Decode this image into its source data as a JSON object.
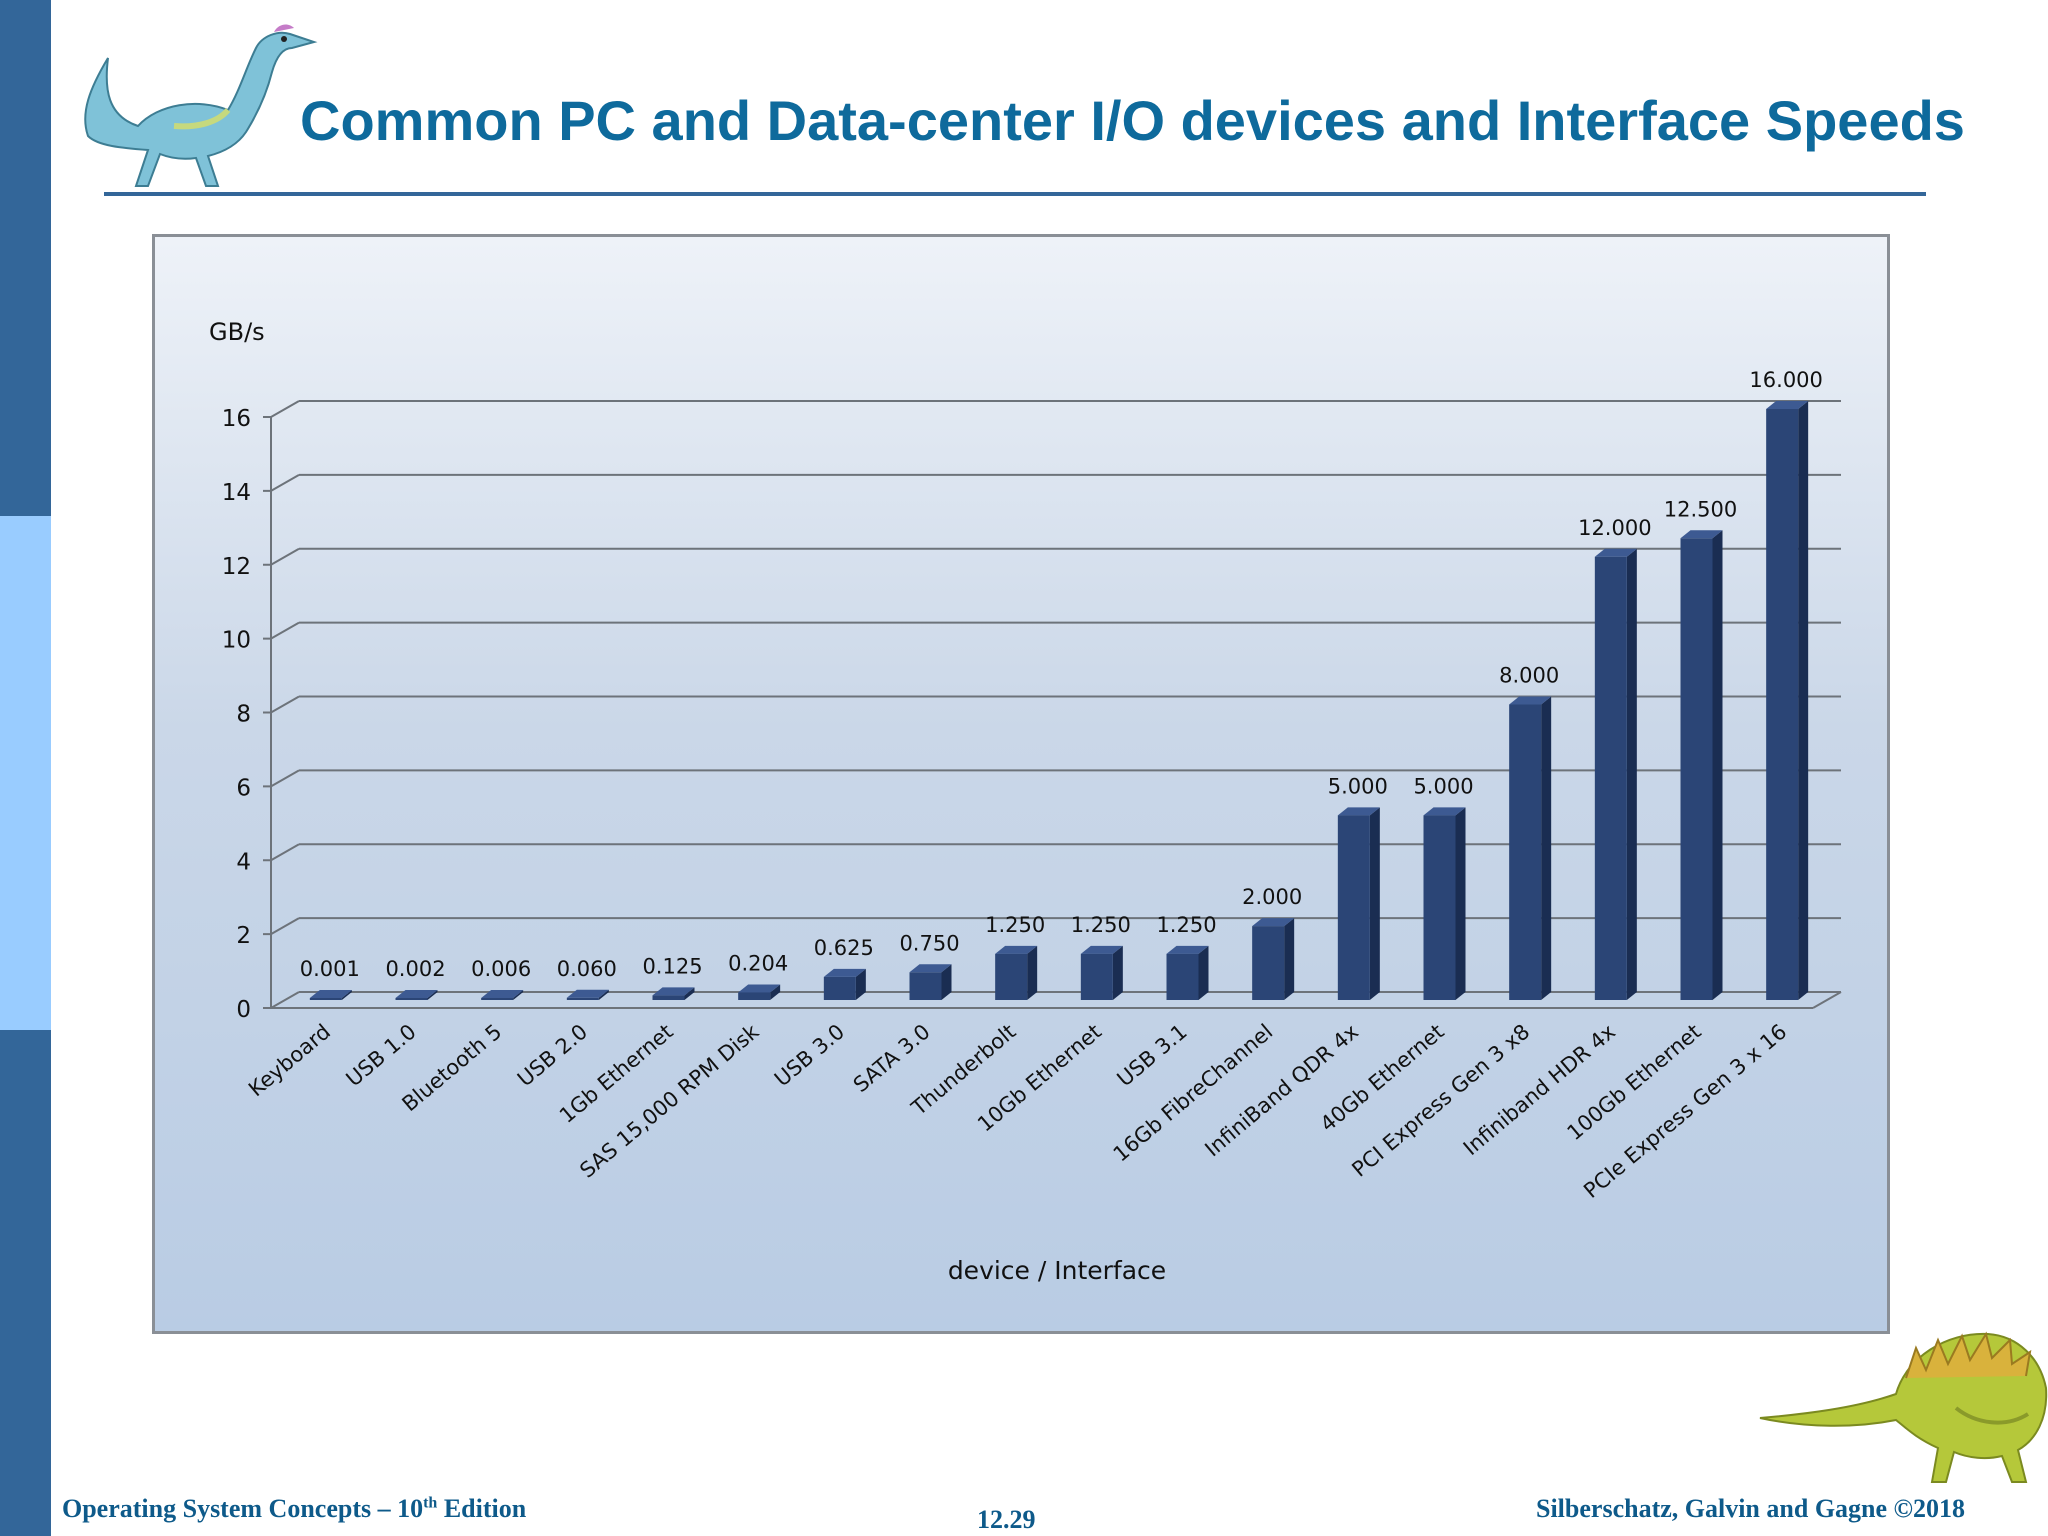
{
  "slide": {
    "title": "Common PC and Data-center I/O devices and Interface Speeds",
    "footer_left_prefix": "Operating System Concepts – 10",
    "footer_left_sup": "th",
    "footer_left_suffix": " Edition",
    "page_number": "12.29",
    "footer_right": "Silberschatz, Galvin and Gagne ©2018"
  },
  "colors": {
    "accent": "#336699",
    "title": "#0e6a9c",
    "bar": "#2b4576"
  },
  "icons": {
    "top_left": "dinosaur-icon",
    "bottom_right": "dinosaur-icon"
  },
  "chart_data": {
    "type": "bar",
    "title": "",
    "xlabel": "device / Interface",
    "ylabel": "GB/s",
    "ylim": [
      0,
      16
    ],
    "yticks": [
      0,
      2,
      4,
      6,
      8,
      10,
      12,
      14,
      16
    ],
    "grid": true,
    "legend": "none",
    "categories": [
      "Keyboard",
      "USB 1.0",
      "Bluetooth 5",
      "USB 2.0",
      "1Gb Ethernet",
      "SAS 15,000 RPM Disk",
      "USB 3.0",
      "SATA 3.0",
      "Thunderbolt",
      "10Gb Ethernet",
      "USB 3.1",
      "16Gb FibreChannel",
      "InfiniBand QDR 4x",
      "40Gb Ethernet",
      "PCI Express Gen 3 x8",
      "Infiniband HDR 4x",
      "100Gb Ethernet",
      "PCIe Express Gen 3 x 16"
    ],
    "values": [
      0.001,
      0.002,
      0.006,
      0.06,
      0.125,
      0.204,
      0.625,
      0.75,
      1.25,
      1.25,
      1.25,
      2,
      5,
      5,
      8,
      12,
      12.5,
      16
    ],
    "value_labels": [
      "0.001",
      "0.002",
      "0.006",
      "0.060",
      "0.125",
      "0.204",
      "0.625",
      "0.750",
      "1.250",
      "1.250",
      "1.250",
      "2.000",
      "5.000",
      "5.000",
      "8.000",
      "12.000",
      "12.500",
      "16.000"
    ]
  }
}
